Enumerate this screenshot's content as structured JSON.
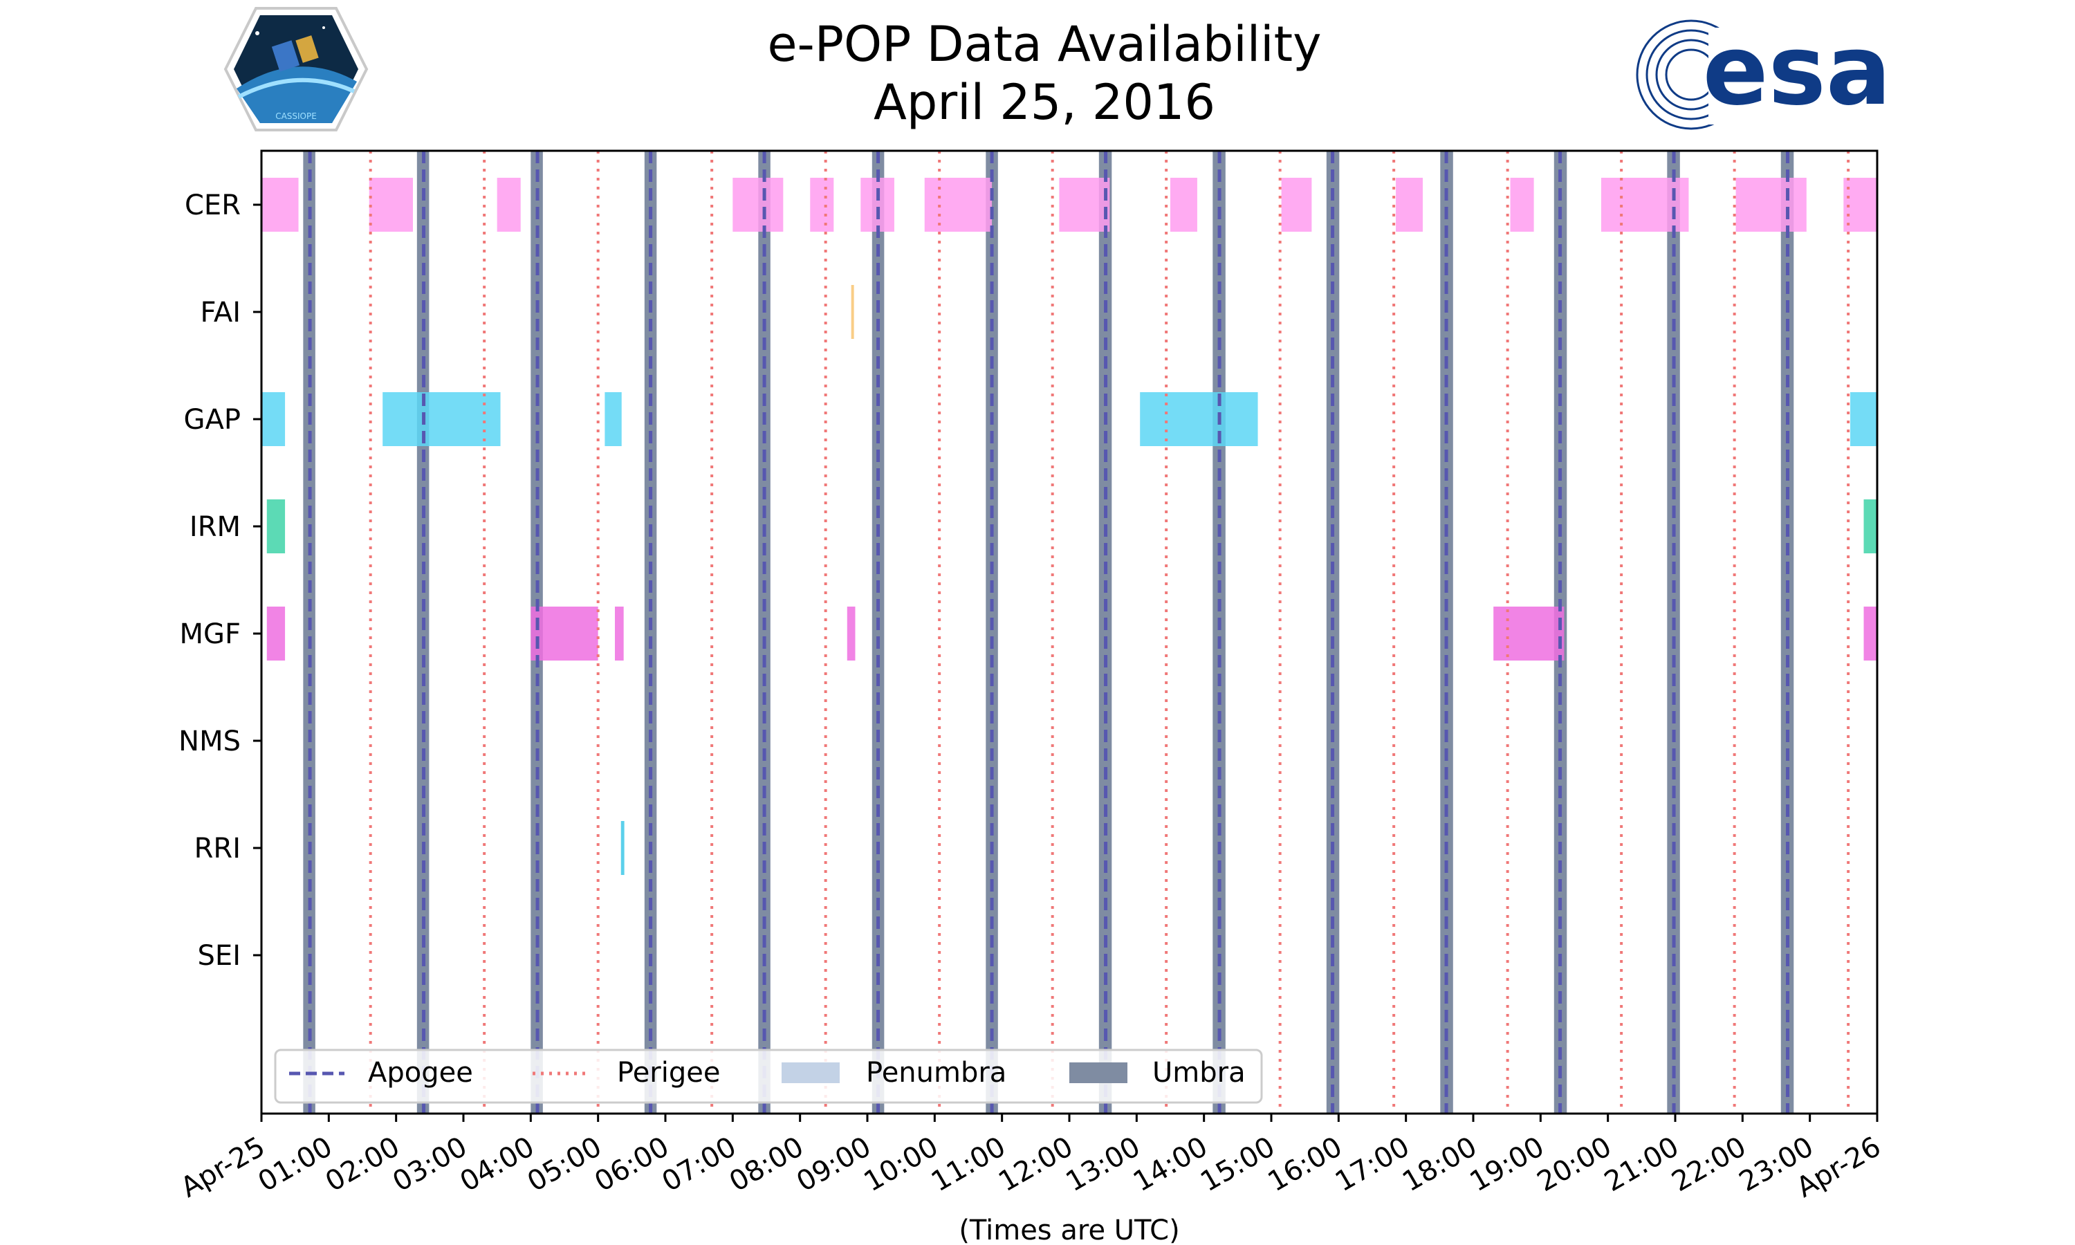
{
  "title": {
    "line1": "e-POP Data Availability",
    "line2": "April 25, 2016"
  },
  "logos": {
    "left": {
      "icon": "cassiope-hexagon-logo",
      "text": "CASSIOPE"
    },
    "right": {
      "icon": "esa-logo",
      "text": "esa"
    }
  },
  "chart_data": {
    "type": "timeline",
    "title": "e-POP Data Availability\nApril 25, 2016",
    "xlabel": "(Times are UTC)",
    "xlim_hours": [
      0,
      24
    ],
    "x_ticks": [
      "Apr-25",
      "01:00",
      "02:00",
      "03:00",
      "04:00",
      "05:00",
      "06:00",
      "07:00",
      "08:00",
      "09:00",
      "10:00",
      "11:00",
      "12:00",
      "13:00",
      "14:00",
      "15:00",
      "16:00",
      "17:00",
      "18:00",
      "19:00",
      "20:00",
      "21:00",
      "22:00",
      "23:00",
      "Apr-26"
    ],
    "instruments": [
      "CER",
      "FAI",
      "GAP",
      "IRM",
      "MGF",
      "NMS",
      "RRI",
      "SEI"
    ],
    "colors": {
      "CER": "#ff9cf0",
      "FAI": "#f8c471",
      "GAP": "#5cd6f5",
      "IRM": "#3fd4a8",
      "MGF": "#ee6ee0",
      "NMS": "#888888",
      "RRI": "#3ec8e8",
      "SEI": "#888888",
      "apogee": "#5757b0",
      "perigee": "#f07878",
      "penumbra": "#c3d2e6",
      "umbra": "#7f8ca2"
    },
    "intervals": {
      "CER": [
        [
          0.0,
          0.55
        ],
        [
          1.6,
          2.25
        ],
        [
          3.5,
          3.85
        ],
        [
          7.0,
          7.75
        ],
        [
          8.15,
          8.5
        ],
        [
          8.9,
          9.4
        ],
        [
          9.85,
          10.85
        ],
        [
          11.85,
          12.6
        ],
        [
          13.5,
          13.9
        ],
        [
          15.15,
          15.6
        ],
        [
          16.85,
          17.25
        ],
        [
          18.55,
          18.9
        ],
        [
          19.9,
          21.2
        ],
        [
          21.9,
          22.95
        ],
        [
          23.5,
          24.0
        ]
      ],
      "FAI": [
        [
          8.76,
          8.8
        ]
      ],
      "GAP": [
        [
          0.0,
          0.35
        ],
        [
          1.8,
          3.55
        ],
        [
          5.1,
          5.35
        ],
        [
          13.05,
          14.8
        ],
        [
          23.6,
          24.0
        ]
      ],
      "IRM": [
        [
          0.08,
          0.35
        ],
        [
          23.8,
          24.0
        ]
      ],
      "MGF": [
        [
          0.08,
          0.35
        ],
        [
          4.0,
          5.0
        ],
        [
          5.25,
          5.38
        ],
        [
          8.7,
          8.82
        ],
        [
          18.3,
          19.35
        ],
        [
          23.8,
          24.0
        ]
      ],
      "NMS": [],
      "RRI": [
        [
          5.34,
          5.39
        ]
      ],
      "SEI": []
    },
    "apogee_hours": [
      0.72,
      2.41,
      4.1,
      5.78,
      7.47,
      9.16,
      10.85,
      12.54,
      14.23,
      15.91,
      17.6,
      19.29,
      20.98,
      22.67
    ],
    "perigee_hours": [
      1.62,
      3.31,
      5.0,
      6.69,
      8.38,
      10.07,
      11.75,
      13.44,
      15.13,
      16.82,
      18.51,
      20.2,
      21.88,
      23.57
    ],
    "umbra_hours": [
      [
        0.62,
        0.8
      ],
      [
        2.31,
        2.49
      ],
      [
        4.0,
        4.18
      ],
      [
        5.69,
        5.87
      ],
      [
        7.38,
        7.56
      ],
      [
        9.07,
        9.25
      ],
      [
        10.76,
        10.94
      ],
      [
        12.44,
        12.63
      ],
      [
        14.13,
        14.32
      ],
      [
        15.82,
        16.01
      ],
      [
        17.51,
        17.7
      ],
      [
        19.2,
        19.39
      ],
      [
        20.88,
        21.07
      ],
      [
        22.57,
        22.76
      ]
    ],
    "legend": {
      "placement": "lower-left",
      "entries": [
        "Apogee",
        "Perigee",
        "Penumbra",
        "Umbra"
      ]
    },
    "grid": false
  }
}
